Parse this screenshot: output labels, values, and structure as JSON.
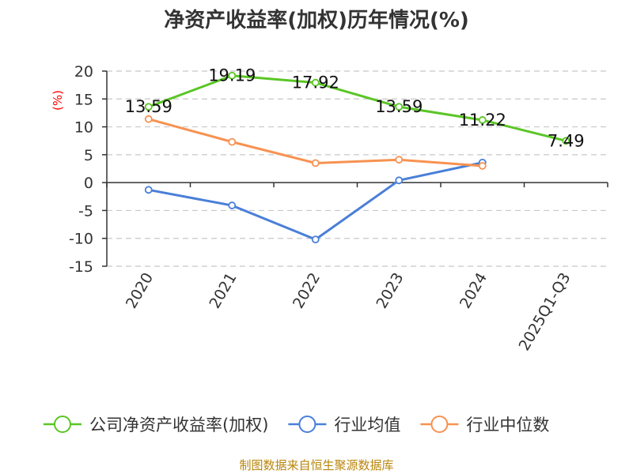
{
  "chart_data": {
    "type": "line",
    "title": "净资产收益率(加权)历年情况(%)",
    "unit_label": "(%)",
    "categories": [
      "2020",
      "2021",
      "2022",
      "2023",
      "2024",
      "2025Q1-Q3"
    ],
    "yticks": [
      20,
      15,
      10,
      5,
      0,
      -5,
      -10,
      -15
    ],
    "ylim": [
      -15,
      20
    ],
    "grid": true,
    "legend_position": "bottom",
    "series": [
      {
        "name": "公司净资产收益率(加权)",
        "color": "#5ac625",
        "values": [
          13.59,
          19.19,
          17.92,
          13.59,
          11.22,
          7.49
        ],
        "labels": [
          "13.59",
          "19.19",
          "17.92",
          "13.59",
          "11.22",
          "7.49"
        ]
      },
      {
        "name": "行业均值",
        "color": "#4a7fd8",
        "values": [
          -1.3,
          -4.1,
          -10.2,
          0.4,
          3.6,
          null
        ]
      },
      {
        "name": "行业中位数",
        "color": "#f79251",
        "values": [
          11.4,
          7.3,
          3.5,
          4.1,
          3.0,
          null
        ]
      }
    ],
    "source": "制图数据来自恒生聚源数据库"
  }
}
